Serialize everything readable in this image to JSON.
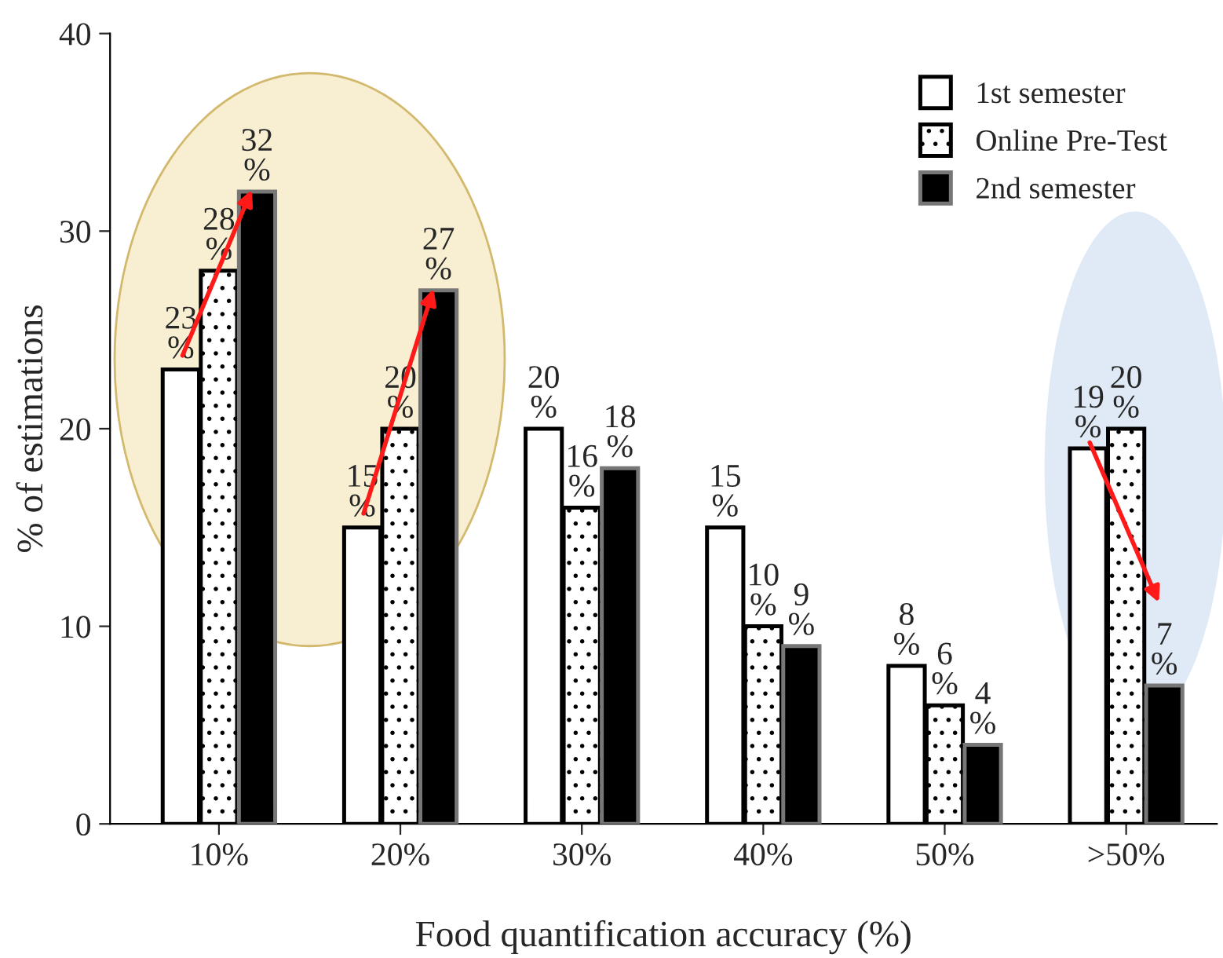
{
  "chart_data": {
    "type": "bar",
    "xlabel": "Food quantification accuracy (%)",
    "ylabel": "% of estimations",
    "categories": [
      "10%",
      "20%",
      "30%",
      "40%",
      "50%",
      ">50%"
    ],
    "series": [
      {
        "name": "1st semester",
        "color": "#ffffff",
        "values": [
          23,
          15,
          20,
          15,
          8,
          19
        ],
        "value_labels": [
          "23\n%",
          "15\n%",
          "20\n%",
          "15\n%",
          "8\n%",
          "19\n%"
        ]
      },
      {
        "name": "Online Pre-Test",
        "color": "#ffffff",
        "values": [
          28,
          20,
          16,
          10,
          6,
          20
        ],
        "value_labels": [
          "28\n%",
          "20\n%",
          "16\n%",
          "10\n%",
          "6\n%",
          "20\n%"
        ]
      },
      {
        "name": "2nd semester",
        "color": "#000000",
        "values": [
          32,
          27,
          18,
          9,
          4,
          7
        ],
        "value_labels": [
          "32\n%",
          "27\n%",
          "18\n%",
          "9\n%",
          "4\n%",
          "7\n%"
        ]
      }
    ],
    "ylim": [
      0,
      40
    ],
    "yticks": [
      0,
      10,
      20,
      30,
      40
    ],
    "grid": false,
    "legend": "top right"
  }
}
